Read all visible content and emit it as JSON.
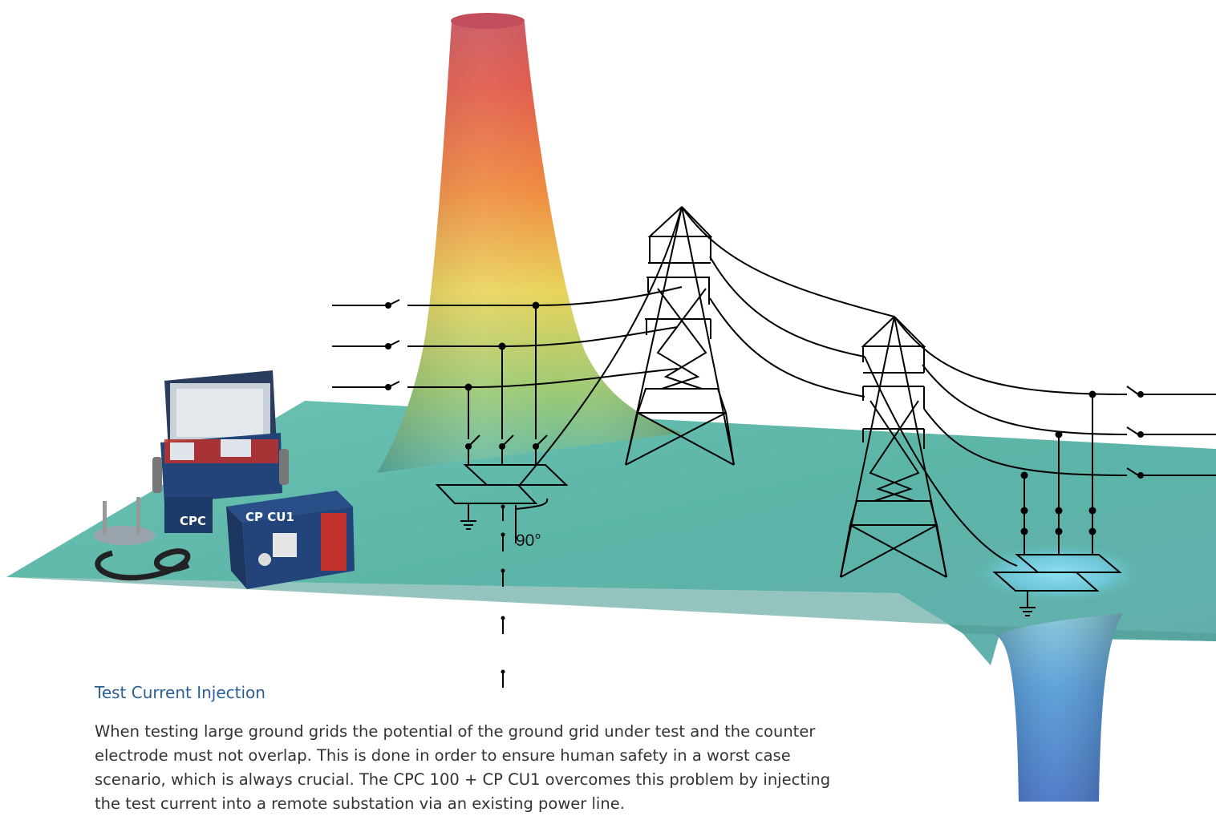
{
  "diagram": {
    "angle_label": "90°",
    "device_main_label": "CPC",
    "device_unit_label": "CP CU1"
  },
  "caption": {
    "title": "Test Current Injection",
    "body": "When testing large ground grids the potential of the ground grid under test and the counter\nelectrode must not overlap. This is done in order to ensure human safety in a worst case\nscenario, which is always crucial. The CPC 100 + CP CU1 overcomes this problem by injecting\nthe test current into a remote substation via an existing power line."
  },
  "colors": {
    "plane": "#5fb8aa",
    "peak_top": "#d9534a",
    "peak_mid": "#e8d55a",
    "funnel": "#4a8fd0",
    "caption_title": "#2a5f94",
    "device_blue": "#23447a",
    "device_red": "#c0302c"
  }
}
